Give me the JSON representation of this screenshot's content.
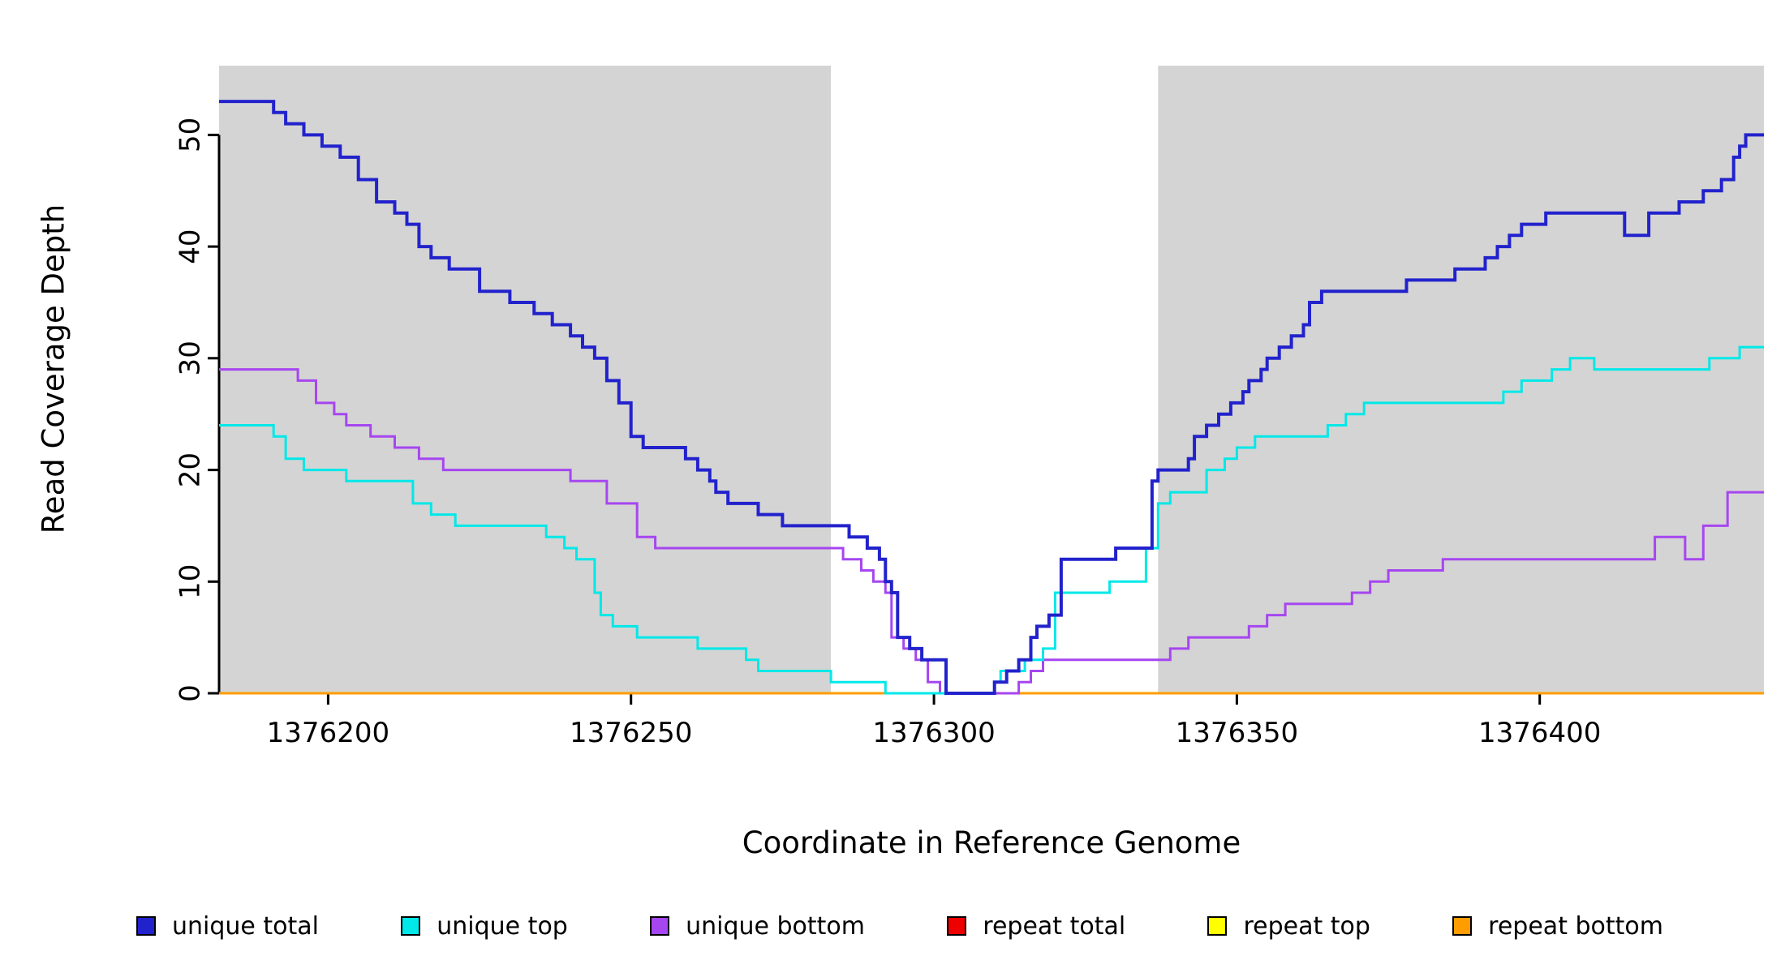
{
  "chart_data": {
    "type": "line",
    "subtype": "step",
    "title": "",
    "xlabel": "Coordinate in Reference Genome",
    "ylabel": "Read Coverage Depth",
    "background_color": "#ffffff",
    "axis_color": "#000000",
    "x_axis": {
      "min": 1376182,
      "max": 1376437,
      "ticks": [
        1376200,
        1376250,
        1376300,
        1376350,
        1376400
      ]
    },
    "y_axis": {
      "min": 0,
      "max": 56.2,
      "ticks": [
        0,
        10,
        20,
        30,
        40,
        50
      ]
    },
    "shaded_regions": [
      {
        "x0": 1376182,
        "x1": 1376283,
        "color": "#d4d4d4"
      },
      {
        "x0": 1376337,
        "x1": 1376437,
        "color": "#d4d4d4"
      }
    ],
    "series": [
      {
        "name": "repeat total",
        "color": "#ee0000",
        "line_width": 3,
        "points": [
          [
            1376182,
            0
          ],
          [
            1376437,
            0
          ]
        ]
      },
      {
        "name": "repeat top",
        "color": "#ffff00",
        "line_width": 3,
        "points": [
          [
            1376182,
            0
          ],
          [
            1376437,
            0
          ]
        ]
      },
      {
        "name": "repeat bottom",
        "color": "#ff9d00",
        "line_width": 3,
        "points": [
          [
            1376182,
            0
          ],
          [
            1376437,
            0
          ]
        ]
      },
      {
        "name": "unique bottom",
        "color": "#a646f0",
        "line_width": 3,
        "points": [
          [
            1376182,
            29
          ],
          [
            1376195,
            28
          ],
          [
            1376198,
            26
          ],
          [
            1376201,
            25
          ],
          [
            1376203,
            24
          ],
          [
            1376207,
            23
          ],
          [
            1376211,
            22
          ],
          [
            1376215,
            21
          ],
          [
            1376219,
            20
          ],
          [
            1376240,
            19
          ],
          [
            1376246,
            17
          ],
          [
            1376251,
            14
          ],
          [
            1376254,
            13
          ],
          [
            1376285,
            12
          ],
          [
            1376288,
            11
          ],
          [
            1376290,
            10
          ],
          [
            1376292,
            9
          ],
          [
            1376293,
            5
          ],
          [
            1376295,
            4
          ],
          [
            1376297,
            3
          ],
          [
            1376299,
            1
          ],
          [
            1376301,
            0
          ],
          [
            1376314,
            1
          ],
          [
            1376316,
            2
          ],
          [
            1376318,
            3
          ],
          [
            1376339,
            4
          ],
          [
            1376342,
            5
          ],
          [
            1376352,
            6
          ],
          [
            1376355,
            7
          ],
          [
            1376358,
            8
          ],
          [
            1376369,
            9
          ],
          [
            1376372,
            10
          ],
          [
            1376375,
            11
          ],
          [
            1376384,
            12
          ],
          [
            1376419,
            14
          ],
          [
            1376424,
            12
          ],
          [
            1376427,
            15
          ],
          [
            1376431,
            18
          ]
        ]
      },
      {
        "name": "unique top",
        "color": "#00e8e8",
        "line_width": 3,
        "points": [
          [
            1376182,
            24
          ],
          [
            1376191,
            23
          ],
          [
            1376193,
            21
          ],
          [
            1376196,
            20
          ],
          [
            1376203,
            19
          ],
          [
            1376214,
            17
          ],
          [
            1376217,
            16
          ],
          [
            1376221,
            15
          ],
          [
            1376236,
            14
          ],
          [
            1376239,
            13
          ],
          [
            1376241,
            12
          ],
          [
            1376244,
            9
          ],
          [
            1376245,
            7
          ],
          [
            1376247,
            6
          ],
          [
            1376251,
            5
          ],
          [
            1376261,
            4
          ],
          [
            1376269,
            3
          ],
          [
            1376271,
            2
          ],
          [
            1376283,
            1
          ],
          [
            1376292,
            0
          ],
          [
            1376310,
            1
          ],
          [
            1376311,
            2
          ],
          [
            1376315,
            3
          ],
          [
            1376318,
            4
          ],
          [
            1376320,
            9
          ],
          [
            1376329,
            10
          ],
          [
            1376335,
            13
          ],
          [
            1376337,
            17
          ],
          [
            1376339,
            18
          ],
          [
            1376345,
            20
          ],
          [
            1376348,
            21
          ],
          [
            1376350,
            22
          ],
          [
            1376353,
            23
          ],
          [
            1376365,
            24
          ],
          [
            1376368,
            25
          ],
          [
            1376371,
            26
          ],
          [
            1376394,
            27
          ],
          [
            1376397,
            28
          ],
          [
            1376402,
            29
          ],
          [
            1376405,
            30
          ],
          [
            1376409,
            29
          ],
          [
            1376428,
            30
          ],
          [
            1376433,
            31
          ]
        ]
      },
      {
        "name": "unique total",
        "color": "#2222cc",
        "line_width": 4,
        "points": [
          [
            1376182,
            53
          ],
          [
            1376191,
            52
          ],
          [
            1376193,
            51
          ],
          [
            1376196,
            50
          ],
          [
            1376199,
            49
          ],
          [
            1376202,
            48
          ],
          [
            1376205,
            46
          ],
          [
            1376208,
            44
          ],
          [
            1376211,
            43
          ],
          [
            1376213,
            42
          ],
          [
            1376215,
            40
          ],
          [
            1376217,
            39
          ],
          [
            1376220,
            38
          ],
          [
            1376225,
            36
          ],
          [
            1376230,
            35
          ],
          [
            1376234,
            34
          ],
          [
            1376237,
            33
          ],
          [
            1376240,
            32
          ],
          [
            1376242,
            31
          ],
          [
            1376244,
            30
          ],
          [
            1376246,
            28
          ],
          [
            1376248,
            26
          ],
          [
            1376250,
            23
          ],
          [
            1376252,
            22
          ],
          [
            1376259,
            21
          ],
          [
            1376261,
            20
          ],
          [
            1376263,
            19
          ],
          [
            1376264,
            18
          ],
          [
            1376266,
            17
          ],
          [
            1376271,
            16
          ],
          [
            1376275,
            15
          ],
          [
            1376286,
            14
          ],
          [
            1376289,
            13
          ],
          [
            1376291,
            12
          ],
          [
            1376292,
            10
          ],
          [
            1376293,
            9
          ],
          [
            1376294,
            5
          ],
          [
            1376296,
            4
          ],
          [
            1376298,
            3
          ],
          [
            1376302,
            0
          ],
          [
            1376310,
            1
          ],
          [
            1376312,
            2
          ],
          [
            1376314,
            3
          ],
          [
            1376316,
            5
          ],
          [
            1376317,
            6
          ],
          [
            1376319,
            7
          ],
          [
            1376321,
            12
          ],
          [
            1376330,
            13
          ],
          [
            1376336,
            19
          ],
          [
            1376337,
            20
          ],
          [
            1376342,
            21
          ],
          [
            1376343,
            23
          ],
          [
            1376345,
            24
          ],
          [
            1376347,
            25
          ],
          [
            1376349,
            26
          ],
          [
            1376351,
            27
          ],
          [
            1376352,
            28
          ],
          [
            1376354,
            29
          ],
          [
            1376355,
            30
          ],
          [
            1376357,
            31
          ],
          [
            1376359,
            32
          ],
          [
            1376361,
            33
          ],
          [
            1376362,
            35
          ],
          [
            1376364,
            36
          ],
          [
            1376378,
            37
          ],
          [
            1376386,
            38
          ],
          [
            1376391,
            39
          ],
          [
            1376393,
            40
          ],
          [
            1376395,
            41
          ],
          [
            1376397,
            42
          ],
          [
            1376401,
            43
          ],
          [
            1376414,
            41
          ],
          [
            1376418,
            43
          ],
          [
            1376423,
            44
          ],
          [
            1376427,
            45
          ],
          [
            1376430,
            46
          ],
          [
            1376432,
            48
          ],
          [
            1376433,
            49
          ],
          [
            1376434,
            50
          ]
        ]
      }
    ],
    "legend": {
      "position": "bottom",
      "entries": [
        {
          "label": "unique total",
          "color": "#2222cc"
        },
        {
          "label": "unique top",
          "color": "#00e8e8"
        },
        {
          "label": "unique bottom",
          "color": "#a646f0"
        },
        {
          "label": "repeat total",
          "color": "#ee0000"
        },
        {
          "label": "repeat top",
          "color": "#ffff00"
        },
        {
          "label": "repeat bottom",
          "color": "#ff9d00"
        }
      ]
    }
  }
}
